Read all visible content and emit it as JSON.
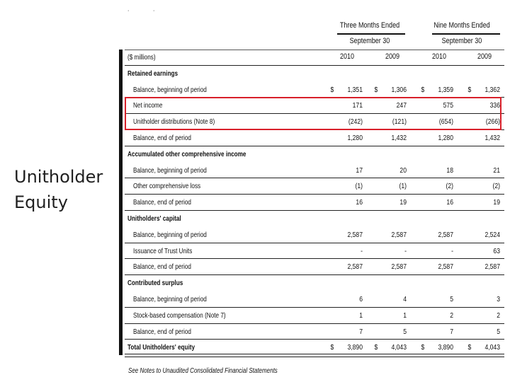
{
  "slide": {
    "title": "Unitholder\nEquity"
  },
  "header": {
    "group1": "Three Months Ended",
    "group1_sub": "September 30",
    "group2": "Nine Months Ended",
    "group2_sub": "September 30",
    "years": [
      "2010",
      "2009",
      "2010",
      "2009"
    ]
  },
  "table": {
    "rows": [
      {
        "label": "($ millions)",
        "type": "unit",
        "values": [
          "",
          "",
          "",
          ""
        ],
        "dollar": false,
        "rule": true
      },
      {
        "label": "Retained earnings",
        "type": "section",
        "values": [
          "",
          "",
          "",
          ""
        ],
        "dollar": false,
        "rule": false
      },
      {
        "label": "Balance, beginning of period",
        "type": "item",
        "values": [
          "1,351",
          "1,306",
          "1,359",
          "1,362"
        ],
        "dollar": true,
        "rule": true
      },
      {
        "label": "Net income",
        "type": "item",
        "values": [
          "171",
          "247",
          "575",
          "336"
        ],
        "dollar": false,
        "rule": true
      },
      {
        "label": "Unitholder distributions (Note 8)",
        "type": "item",
        "values": [
          "(242)",
          "(121)",
          "(654)",
          "(266)"
        ],
        "dollar": false,
        "rule": true
      },
      {
        "label": "Balance, end of period",
        "type": "item",
        "values": [
          "1,280",
          "1,432",
          "1,280",
          "1,432"
        ],
        "dollar": false,
        "rule": true
      },
      {
        "label": "Accumulated other comprehensive income",
        "type": "section",
        "values": [
          "",
          "",
          "",
          ""
        ],
        "dollar": false,
        "rule": false
      },
      {
        "label": "Balance, beginning of period",
        "type": "item",
        "values": [
          "17",
          "20",
          "18",
          "21"
        ],
        "dollar": false,
        "rule": true
      },
      {
        "label": "Other comprehensive loss",
        "type": "item",
        "values": [
          "(1)",
          "(1)",
          "(2)",
          "(2)"
        ],
        "dollar": false,
        "rule": true
      },
      {
        "label": "Balance, end of period",
        "type": "item",
        "values": [
          "16",
          "19",
          "16",
          "19"
        ],
        "dollar": false,
        "rule": true
      },
      {
        "label": "Unitholders' capital",
        "type": "section",
        "values": [
          "",
          "",
          "",
          ""
        ],
        "dollar": false,
        "rule": false
      },
      {
        "label": "Balance, beginning of period",
        "type": "item",
        "values": [
          "2,587",
          "2,587",
          "2,587",
          "2,524"
        ],
        "dollar": false,
        "rule": true
      },
      {
        "label": "Issuance of Trust Units",
        "type": "item",
        "values": [
          "-",
          "-",
          "-",
          "63"
        ],
        "dollar": false,
        "rule": true
      },
      {
        "label": "Balance, end of period",
        "type": "item",
        "values": [
          "2,587",
          "2,587",
          "2,587",
          "2,587"
        ],
        "dollar": false,
        "rule": true
      },
      {
        "label": "Contributed surplus",
        "type": "section",
        "values": [
          "",
          "",
          "",
          ""
        ],
        "dollar": false,
        "rule": false
      },
      {
        "label": "Balance, beginning of period",
        "type": "item",
        "values": [
          "6",
          "4",
          "5",
          "3"
        ],
        "dollar": false,
        "rule": true
      },
      {
        "label": "Stock-based compensation (Note 7)",
        "type": "item",
        "values": [
          "1",
          "1",
          "2",
          "2"
        ],
        "dollar": false,
        "rule": true
      },
      {
        "label": "Balance, end of period",
        "type": "item",
        "values": [
          "7",
          "5",
          "7",
          "5"
        ],
        "dollar": false,
        "rule": true
      },
      {
        "label": "Total Unitholders' equity",
        "type": "total",
        "values": [
          "3,890",
          "4,043",
          "3,890",
          "4,043"
        ],
        "dollar": true,
        "rule": false
      }
    ],
    "currency_symbol": "$"
  },
  "footnote": "See Notes to Unaudited Consolidated Financial Statements",
  "colors": {
    "highlight": "#d8202a"
  }
}
